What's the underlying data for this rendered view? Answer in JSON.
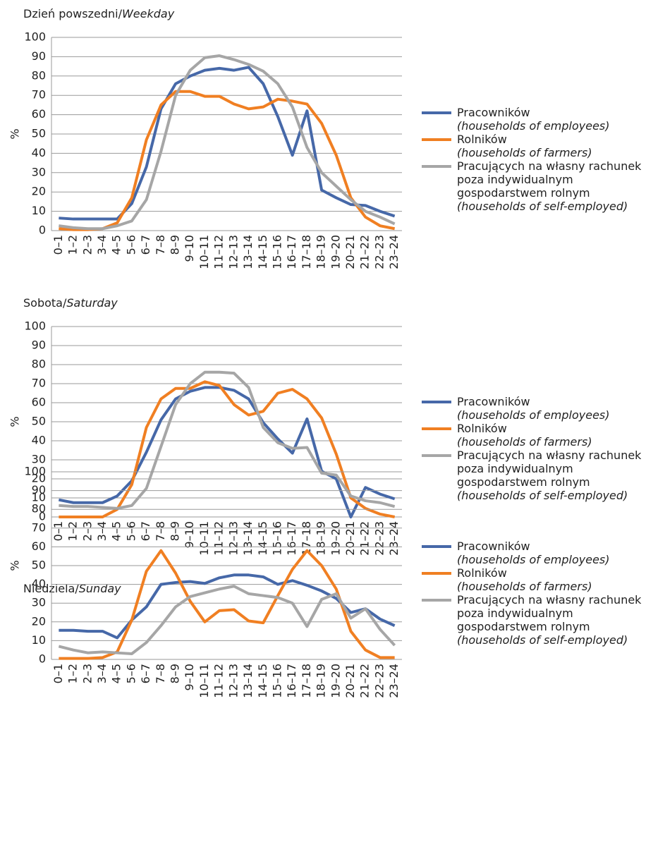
{
  "chart_data": [
    {
      "type": "line",
      "title": [
        "Dzień powszedni/",
        "Weekday"
      ],
      "ylabel": "%",
      "categories": [
        "0–1",
        "1–2",
        "2–3",
        "3–4",
        "4–5",
        "5–6",
        "6–7",
        "7–8",
        "8–9",
        "9–10",
        "10–11",
        "11–12",
        "12–13",
        "13–14",
        "14–15",
        "15–16",
        "16–17",
        "17–18",
        "18–19",
        "19–20",
        "20–21",
        "21–22",
        "22–23",
        "23–24"
      ],
      "ylim": [
        0,
        100
      ],
      "yticks": [
        0,
        10,
        20,
        30,
        40,
        50,
        60,
        70,
        80,
        90,
        100
      ],
      "grid": true,
      "legend": "right",
      "series": [
        {
          "name": "Pracowników",
          "name_en": "(households of employees)",
          "color": "#4668a8",
          "values": [
            6.5,
            6,
            6,
            6,
            6,
            14,
            33,
            63,
            76,
            80,
            83,
            84,
            83,
            84.5,
            76,
            59,
            39,
            62,
            21,
            17,
            13.5,
            13,
            10,
            7.5
          ]
        },
        {
          "name": "Rolników",
          "name_en": "(households of farmers)",
          "color": "#f07f22",
          "values": [
            1,
            0.5,
            0.5,
            1,
            4,
            17,
            47,
            65,
            72,
            72,
            69.5,
            69.5,
            65.5,
            63,
            64,
            68,
            67,
            65.5,
            55.5,
            39,
            17,
            7,
            2.5,
            1
          ]
        },
        {
          "name": "Pracujących na własny rachunek poza indywidualnym gospodarstwem rolnym",
          "name_en": "(households of self-employed)",
          "color": "#a6a6a6",
          "values": [
            2.5,
            1.5,
            1,
            1,
            2.5,
            5,
            16,
            41,
            70,
            83,
            89.5,
            90.5,
            88.5,
            86,
            82.5,
            76,
            64,
            43,
            30,
            23,
            16,
            10,
            7,
            3.5
          ]
        }
      ]
    },
    {
      "type": "line",
      "title": [
        "Sobota/",
        "Saturday"
      ],
      "ylabel": "%",
      "categories": [
        "0–1",
        "1–2",
        "2–3",
        "3–4",
        "4–5",
        "5–6",
        "6–7",
        "7–8",
        "8–9",
        "9–10",
        "10–11",
        "11–12",
        "12–13",
        "13–14",
        "14–15",
        "15–16",
        "16–17",
        "17–18",
        "18–19",
        "19–20",
        "20–21",
        "21–22",
        "22–23",
        "23–24"
      ],
      "ylim": [
        0,
        100
      ],
      "yticks": [
        0,
        10,
        20,
        30,
        40,
        50,
        60,
        70,
        80,
        90,
        100
      ],
      "grid": true,
      "legend": "right",
      "series": [
        {
          "name": "Pracowników",
          "name_en": "(households of employees)",
          "color": "#4668a8",
          "values": [
            9,
            7.5,
            7.5,
            7.5,
            11,
            19,
            34,
            51,
            62,
            66,
            68,
            68,
            66.5,
            62,
            49.5,
            41,
            33.5,
            51.5,
            24,
            20,
            0,
            15.5,
            12,
            9.5
          ]
        },
        {
          "name": "Rolników",
          "name_en": "(households of farmers)",
          "color": "#f07f22",
          "values": [
            0,
            0,
            0,
            0,
            4,
            17,
            47,
            62,
            67.5,
            67.5,
            71,
            69,
            59,
            53.5,
            55.5,
            65,
            67,
            62,
            52,
            33,
            10,
            4.5,
            1.5,
            0
          ]
        },
        {
          "name": "Pracujących na własny rachunek poza indywidualnym gospodarstwem rolnym",
          "name_en": "(households of self-employed)",
          "color": "#a6a6a6",
          "values": [
            6,
            5.5,
            5.5,
            5,
            4.5,
            6,
            15,
            37,
            59,
            70,
            76,
            76,
            75.5,
            68,
            47,
            39,
            36,
            36.5,
            23,
            22,
            11,
            8.5,
            7.5,
            5.5
          ]
        }
      ]
    },
    {
      "type": "line",
      "title": [
        "Niedziela/",
        "Sunday"
      ],
      "ylabel": "%",
      "categories": [
        "0–1",
        "1–2",
        "2–3",
        "3–4",
        "4–5",
        "5–6",
        "6–7",
        "7–8",
        "8–9",
        "9–10",
        "10–11",
        "11–12",
        "12–13",
        "13–14",
        "14–15",
        "15–16",
        "16–17",
        "17–18",
        "18–19",
        "19–20",
        "20–21",
        "21–22",
        "22–23",
        "23–24"
      ],
      "ylim": [
        0,
        100
      ],
      "yticks": [
        0,
        10,
        20,
        30,
        40,
        50,
        60,
        70,
        80,
        90,
        100
      ],
      "grid": true,
      "legend": "right",
      "series": [
        {
          "name": "Pracowników",
          "name_en": "(households of employees)",
          "color": "#4668a8",
          "values": [
            15.5,
            15.5,
            15,
            15,
            11.5,
            21,
            28,
            40,
            41,
            41.5,
            40.5,
            43.5,
            45,
            45,
            44,
            40,
            42,
            39.5,
            36.5,
            32.5,
            25,
            27,
            21.5,
            18
          ]
        },
        {
          "name": "Rolników",
          "name_en": "(households of farmers)",
          "color": "#f07f22",
          "values": [
            0.5,
            0.5,
            0.5,
            1,
            4,
            21,
            47,
            58,
            46,
            31,
            20,
            26,
            26.5,
            20.5,
            19.5,
            34,
            48,
            58,
            50,
            37.5,
            15,
            5,
            1,
            1
          ]
        },
        {
          "name": "Pracujących na własny rachunek poza indywidualnym gospodarstwem rolnym",
          "name_en": "(households of self-employed)",
          "color": "#a6a6a6",
          "values": [
            7,
            5,
            3.5,
            4,
            3.5,
            3,
            9,
            18,
            28,
            33.5,
            35.5,
            37.5,
            39,
            35,
            34,
            33,
            30,
            17.5,
            32,
            35,
            22,
            27,
            16,
            7.5
          ]
        }
      ]
    }
  ]
}
